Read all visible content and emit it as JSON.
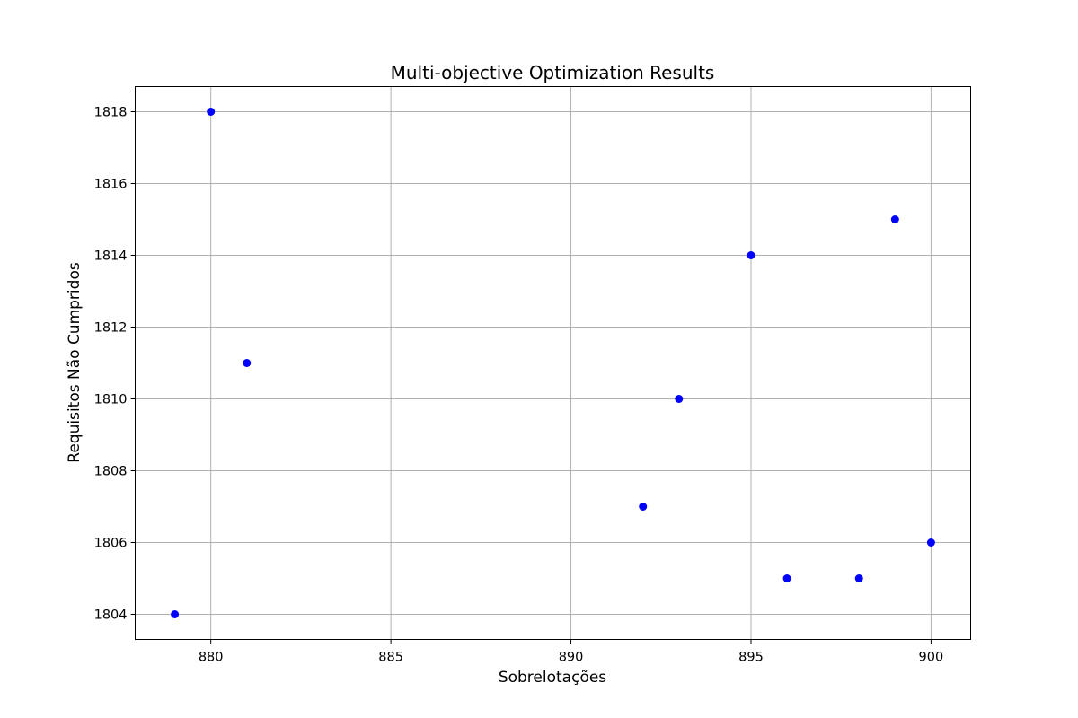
{
  "chart_data": {
    "type": "scatter",
    "title": "Multi-objective Optimization Results",
    "xlabel": "Sobrelotações",
    "ylabel": "Requisitos Não Cumpridos",
    "xlim": [
      877.9,
      901.1
    ],
    "ylim": [
      1803.3,
      1818.7
    ],
    "xticks": [
      880,
      885,
      890,
      895,
      900
    ],
    "yticks": [
      1804,
      1806,
      1808,
      1810,
      1812,
      1814,
      1816,
      1818
    ],
    "grid": true,
    "point_color": "#0000ff",
    "points": [
      {
        "x": 879,
        "y": 1804
      },
      {
        "x": 880,
        "y": 1818
      },
      {
        "x": 881,
        "y": 1811
      },
      {
        "x": 892,
        "y": 1807
      },
      {
        "x": 893,
        "y": 1810
      },
      {
        "x": 895,
        "y": 1814
      },
      {
        "x": 896,
        "y": 1805
      },
      {
        "x": 898,
        "y": 1805
      },
      {
        "x": 899,
        "y": 1815
      },
      {
        "x": 900,
        "y": 1806
      }
    ]
  }
}
